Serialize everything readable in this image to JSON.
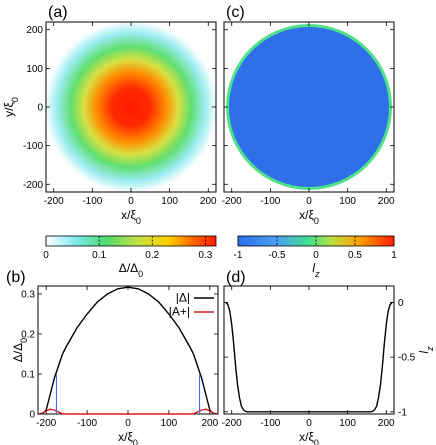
{
  "panels": {
    "a": "(a)",
    "b": "(b)",
    "c": "(c)",
    "d": "(d)"
  },
  "chart_data": [
    {
      "panel": "(a)",
      "type": "heatmap",
      "description_of_field": "radially symmetric |Δ|/Δ0, disk of radius ~200",
      "xlabel": "x/ξ0",
      "ylabel": "y/ξ0",
      "xlim": [
        -220,
        220
      ],
      "ylim": [
        -220,
        220
      ],
      "xticks": [
        -200,
        -100,
        0,
        100,
        200
      ],
      "yticks": [
        -200,
        -100,
        0,
        100,
        200
      ],
      "center_value": 0.32,
      "colorbar": {
        "label": "Δ/Δ0",
        "range": [
          0,
          0.32
        ],
        "ticks": [
          0,
          0.1,
          0.2,
          0.3
        ]
      }
    },
    {
      "panel": "(c)",
      "type": "heatmap",
      "xlabel": "x/ξ0",
      "xlim": [
        -220,
        220
      ],
      "ylim": [
        -220,
        220
      ],
      "xticks": [
        -200,
        -100,
        0,
        100,
        200
      ],
      "interior_value": -1,
      "edge_value": 0,
      "colorbar": {
        "label": "lz",
        "range": [
          -1,
          1
        ],
        "ticks": [
          -1,
          -0.5,
          0,
          0.5,
          1
        ]
      }
    },
    {
      "panel": "(b)",
      "type": "line",
      "xlabel": "x/ξ0",
      "ylabel": "Δ/Δ0",
      "xlim": [
        -220,
        220
      ],
      "ylim": [
        0,
        0.32
      ],
      "xticks": [
        -200,
        -100,
        0,
        100,
        200
      ],
      "yticks": [
        0,
        0.1,
        0.2,
        0.3
      ],
      "legend_position": "top-right",
      "series": [
        {
          "name": "|Δ|",
          "color": "#000000",
          "x": [
            -210,
            -200,
            -190,
            -180,
            -170,
            -160,
            -150,
            -125,
            -100,
            -75,
            -50,
            -25,
            0,
            25,
            50,
            75,
            100,
            125,
            150,
            160,
            170,
            180,
            190,
            200,
            210
          ],
          "y": [
            0,
            0.01,
            0.05,
            0.09,
            0.12,
            0.15,
            0.17,
            0.215,
            0.25,
            0.28,
            0.3,
            0.313,
            0.317,
            0.313,
            0.3,
            0.28,
            0.25,
            0.215,
            0.17,
            0.15,
            0.12,
            0.09,
            0.05,
            0.01,
            0
          ]
        },
        {
          "name": "|A+|",
          "color": "#e31a1c",
          "x": [
            -220,
            -210,
            -200,
            -190,
            -180,
            -170,
            -160,
            -150,
            0,
            150,
            160,
            170,
            180,
            190,
            200,
            210,
            220
          ],
          "y": [
            0,
            0.002,
            0.008,
            0.012,
            0.01,
            0.005,
            0.001,
            0,
            0,
            0,
            0.001,
            0.005,
            0.01,
            0.012,
            0.008,
            0.002,
            0
          ]
        }
      ]
    },
    {
      "panel": "(d)",
      "type": "line",
      "xlabel": "x/ξ0",
      "ylabel": "lz",
      "xlim": [
        -220,
        220
      ],
      "ylim": [
        -1.02,
        0.15
      ],
      "xticks": [
        -200,
        -100,
        0,
        100,
        200
      ],
      "yticks": [
        0,
        -0.5,
        -1
      ],
      "series": [
        {
          "color": "#000000",
          "x": [
            -215,
            -210,
            -205,
            -200,
            -195,
            -190,
            -185,
            -180,
            -175,
            -170,
            -165,
            -160,
            0,
            160,
            165,
            170,
            175,
            180,
            185,
            190,
            195,
            200,
            205,
            210,
            215
          ],
          "y": [
            0,
            -0.02,
            -0.08,
            -0.2,
            -0.38,
            -0.58,
            -0.75,
            -0.87,
            -0.95,
            -0.98,
            -0.995,
            -1,
            -1,
            -1,
            -0.995,
            -0.98,
            -0.95,
            -0.87,
            -0.75,
            -0.58,
            -0.38,
            -0.2,
            -0.08,
            -0.02,
            0
          ]
        }
      ]
    }
  ],
  "colors": {
    "heat_stops": [
      "#ffffff",
      "#7ee8f0",
      "#60e070",
      "#b8e040",
      "#ffd000",
      "#ff6a00",
      "#ff1a00"
    ],
    "lz_stops": [
      "#2a6fe8",
      "#4aa0f0",
      "#40e080",
      "#c0e040",
      "#ffa000",
      "#ff1a00"
    ],
    "lz_interior": "#2f6fea",
    "lz_edge": "#4fe08a",
    "blue_edge": "#3060ff"
  }
}
